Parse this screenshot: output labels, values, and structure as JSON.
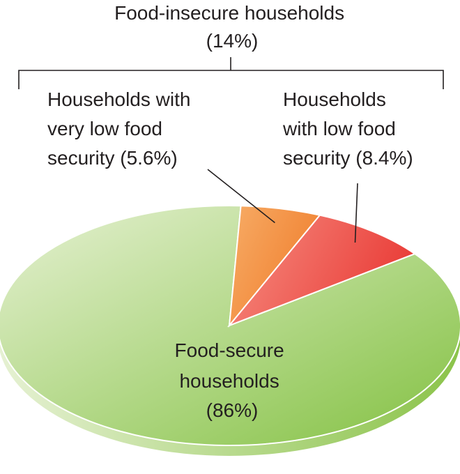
{
  "chart_data": {
    "type": "pie",
    "title": "",
    "group_label": {
      "line1": "Food-insecure households",
      "line2": "(14%)",
      "value": 14,
      "members": [
        "very_low",
        "low"
      ]
    },
    "slices": [
      {
        "key": "secure",
        "label_lines": [
          "Food-secure",
          "households",
          "(86%)"
        ],
        "value": 86,
        "color_light": "#e6f1d3",
        "color_dark": "#83c142",
        "side_color": "#8bc34a"
      },
      {
        "key": "very_low",
        "label_lines": [
          "Households with",
          "very low food",
          "security (5.6%)"
        ],
        "value": 5.6,
        "color_light": "#f7ac66",
        "color_dark": "#f07f2e",
        "side_color": "#e07528"
      },
      {
        "key": "low",
        "label_lines": [
          "Households",
          "with low food",
          "security (8.4%)"
        ],
        "value": 8.4,
        "color_light": "#f68e82",
        "color_dark": "#ea3f3a",
        "side_color": "#d83a33"
      }
    ],
    "legend": "none"
  }
}
